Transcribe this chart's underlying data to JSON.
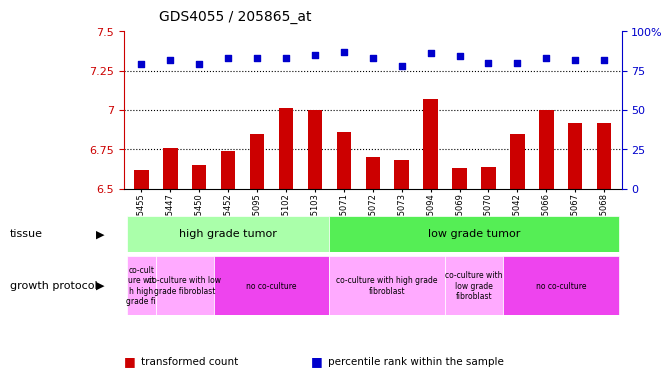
{
  "title": "GDS4055 / 205865_at",
  "samples": [
    "GSM665455",
    "GSM665447",
    "GSM665450",
    "GSM665452",
    "GSM665095",
    "GSM665102",
    "GSM665103",
    "GSM665071",
    "GSM665072",
    "GSM665073",
    "GSM665094",
    "GSM665069",
    "GSM665070",
    "GSM665042",
    "GSM665066",
    "GSM665067",
    "GSM665068"
  ],
  "bar_values": [
    6.62,
    6.76,
    6.65,
    6.74,
    6.85,
    7.01,
    7.0,
    6.86,
    6.7,
    6.68,
    7.07,
    6.63,
    6.64,
    6.85,
    7.0,
    6.92,
    6.92
  ],
  "dot_values": [
    79,
    82,
    79,
    83,
    83,
    83,
    85,
    87,
    83,
    78,
    86,
    84,
    80,
    80,
    83,
    82,
    82
  ],
  "ylim": [
    6.5,
    7.5
  ],
  "yticks": [
    6.5,
    6.75,
    7.0,
    7.25,
    7.5
  ],
  "y2ticks": [
    0,
    25,
    50,
    75,
    100
  ],
  "bar_color": "#cc0000",
  "dot_color": "#0000cc",
  "tissue_row": [
    {
      "label": "high grade tumor",
      "start": 0,
      "end": 7,
      "color": "#aaffaa"
    },
    {
      "label": "low grade tumor",
      "start": 7,
      "end": 17,
      "color": "#55ee55"
    }
  ],
  "protocol_row": [
    {
      "label": "co-cult\nure wit\nh high\ngrade fi",
      "start": 0,
      "end": 1,
      "color": "#ffaaff"
    },
    {
      "label": "co-culture with low\ngrade fibroblast",
      "start": 1,
      "end": 3,
      "color": "#ffaaff"
    },
    {
      "label": "no co-culture",
      "start": 3,
      "end": 7,
      "color": "#ee44ee"
    },
    {
      "label": "co-culture with high grade\nfibroblast",
      "start": 7,
      "end": 11,
      "color": "#ffaaff"
    },
    {
      "label": "co-culture with\nlow grade\nfibroblast",
      "start": 11,
      "end": 13,
      "color": "#ffaaff"
    },
    {
      "label": "no co-culture",
      "start": 13,
      "end": 17,
      "color": "#ee44ee"
    }
  ],
  "legend_red": "transformed count",
  "legend_blue": "percentile rank within the sample",
  "left_label_tissue": "tissue",
  "left_label_protocol": "growth protocol"
}
